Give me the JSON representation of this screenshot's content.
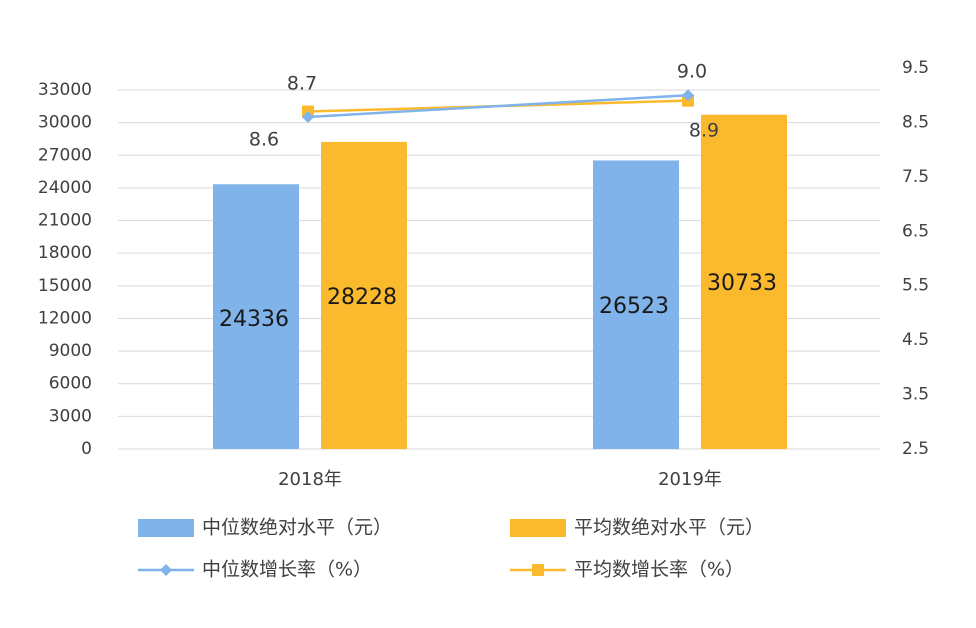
{
  "chart_data": {
    "type": "bar",
    "categories": [
      "2018年",
      "2019年"
    ],
    "series": [
      {
        "name": "中位数绝对水平（元）",
        "kind": "bar",
        "axis": "left",
        "values": [
          24336,
          28228
        ],
        "color": "#7FB3EA"
      },
      {
        "name": "平均数绝对水平（元）",
        "kind": "bar",
        "axis": "left",
        "values": [
          26523,
          30733
        ],
        "color": "#FBBA2E"
      },
      {
        "name": "中位数增长率（%）",
        "kind": "line",
        "axis": "right",
        "values": [
          8.6,
          9.0
        ],
        "color": "#7FB3EA",
        "marker": "diamond"
      },
      {
        "name": "平均数增长率（%）",
        "kind": "line",
        "axis": "right",
        "values": [
          8.7,
          8.9
        ],
        "color": "#FBBA2E",
        "marker": "square"
      }
    ],
    "bar_labels": [
      [
        "24336",
        "26523"
      ],
      [
        "28228",
        "30733"
      ]
    ],
    "line_labels": [
      [
        "8.6",
        "9.0"
      ],
      [
        "8.7",
        "8.9"
      ]
    ],
    "y_left": {
      "ylim": [
        0,
        33000
      ],
      "ticks": [
        0,
        3000,
        6000,
        9000,
        12000,
        15000,
        18000,
        21000,
        24000,
        27000,
        30000,
        33000
      ],
      "tick_labels": [
        "0",
        "3000",
        "6000",
        "9000",
        "12000",
        "15000",
        "18000",
        "21000",
        "24000",
        "27000",
        "30000",
        "33000"
      ]
    },
    "y_right": {
      "ylim": [
        2.5,
        9.5
      ],
      "ticks": [
        2.5,
        3.5,
        4.5,
        5.5,
        6.5,
        7.5,
        8.5,
        9.5
      ],
      "tick_labels": [
        "2.5",
        "3.5",
        "4.5",
        "5.5",
        "6.5",
        "7.5",
        "8.5",
        "9.5"
      ]
    },
    "grid": true,
    "legend_position": "bottom"
  }
}
